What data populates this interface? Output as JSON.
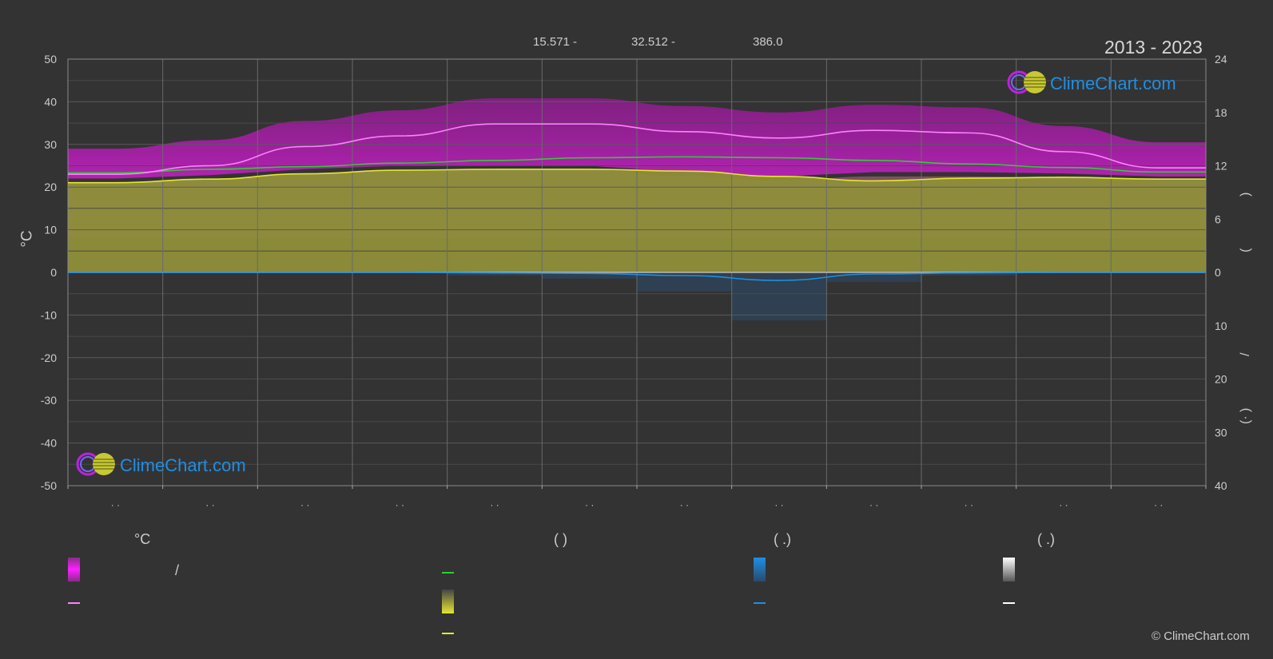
{
  "header": {
    "coords": [
      "15.571 -",
      "32.512 -",
      "386.0"
    ],
    "period": "2013 - 2023"
  },
  "logo": {
    "text": "ClimeChart.com"
  },
  "footer": {
    "copyright": "© ClimeChart.com"
  },
  "legend": {
    "temp_unit": "°C",
    "hours_paren": "(          )",
    "precip_paren": "(   .)",
    "snow_paren": "(   .)",
    "slash": "/"
  },
  "axes": {
    "left_unit": "°C",
    "left_ticks": [
      "50",
      "40",
      "30",
      "20",
      "10",
      "0",
      "-10",
      "-20",
      "-30",
      "-40",
      "-50"
    ],
    "right_ticks_top": [
      "24",
      "18",
      "12",
      "6",
      "0"
    ],
    "right_ticks_bottom": [
      "10",
      "20",
      "30",
      "40"
    ],
    "x_ticks": [
      "· ·",
      "· ·",
      "· ·",
      "· ·",
      "· ·",
      "· ·",
      "· ·",
      "· ·",
      "· ·",
      "· ·",
      "· ·",
      "· ·"
    ],
    "right_glyphs": [
      ")",
      "(",
      "/",
      ")",
      "(·"
    ]
  },
  "colors": {
    "background": "#333333",
    "grid": "#5a5a5a",
    "magenta": "#e020e0",
    "pink_line": "#ff80ff",
    "green": "#33cc33",
    "yellow": "#e6e633",
    "olive": "#8f8f3a",
    "blue": "#1e8fe6",
    "logo_blue": "#1e8fe6"
  },
  "chart_data": {
    "type": "area",
    "xlabel": "",
    "ylabel": "°C",
    "ylim": [
      -50,
      50
    ],
    "y2lim_top": [
      0,
      24
    ],
    "y2lim_bottom": [
      0,
      40
    ],
    "grid": true,
    "months": 12,
    "series": [
      {
        "key": "daylight",
        "unit": "h",
        "values": [
          11.2,
          11.6,
          11.9,
          12.3,
          12.6,
          12.9,
          13.0,
          12.9,
          12.6,
          12.2,
          11.8,
          11.3
        ]
      },
      {
        "key": "sunshine",
        "unit": "h",
        "values": [
          10.1,
          10.5,
          11.1,
          11.5,
          11.6,
          11.6,
          11.4,
          10.8,
          10.3,
          10.6,
          10.7,
          10.5
        ]
      },
      {
        "key": "mean_max_temp",
        "unit": "°C",
        "values": [
          23,
          25,
          29.5,
          32,
          34.8,
          34.8,
          33,
          31.5,
          33.3,
          32.7,
          28.3,
          24.5
        ]
      },
      {
        "key": "mean_min_temp",
        "unit": "°C",
        "values": [
          21,
          21.8,
          23.2,
          24,
          24,
          24,
          22.5,
          21.5,
          22.5,
          22.5,
          22.2,
          21.5
        ]
      },
      {
        "key": "precipitation",
        "unit": "mm",
        "values": [
          0,
          0,
          0,
          0,
          0.1,
          0.2,
          0.6,
          1.5,
          0.3,
          0.1,
          0,
          0
        ]
      }
    ]
  }
}
